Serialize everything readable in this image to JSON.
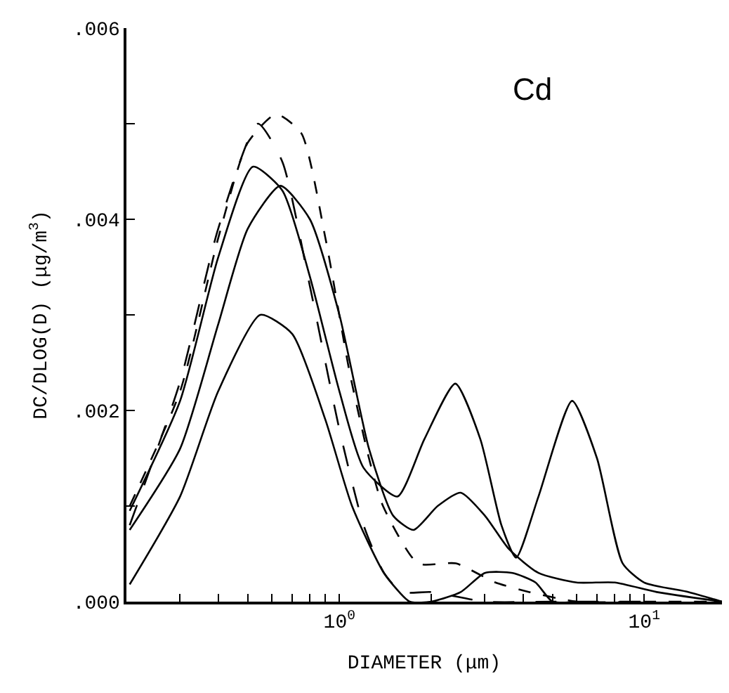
{
  "chart_data": {
    "type": "line",
    "xlabel": "DIAMETER (μm)",
    "ylabel": "DC/DLOG(D) (μg/m$^{3}$)",
    "annotations": [
      "Cd"
    ],
    "log": "x",
    "marker": "none",
    "xlim": [
      0.2,
      18
    ],
    "ylim": [
      0,
      0.006
    ],
    "xticks": [
      {
        "value": 0.3,
        "label": null
      },
      {
        "value": 0.4,
        "label": null
      },
      {
        "value": 0.5,
        "label": null
      },
      {
        "value": 0.6,
        "label": null
      },
      {
        "value": 0.7,
        "label": null
      },
      {
        "value": 0.8,
        "label": null
      },
      {
        "value": 0.9,
        "label": null
      },
      {
        "value": 1,
        "label": "10$^{0}$"
      },
      {
        "value": 2,
        "label": null
      },
      {
        "value": 3,
        "label": null
      },
      {
        "value": 4,
        "label": null
      },
      {
        "value": 5,
        "label": null
      },
      {
        "value": 6,
        "label": null
      },
      {
        "value": 7,
        "label": null
      },
      {
        "value": 8,
        "label": null
      },
      {
        "value": 9,
        "label": null
      },
      {
        "value": 10,
        "label": "10$^{1}$"
      }
    ],
    "yticks": [
      {
        "value": 0,
        "label": ".000"
      },
      {
        "value": 0.001,
        "label": null
      },
      {
        "value": 0.002,
        "label": ".002"
      },
      {
        "value": 0.003,
        "label": null
      },
      {
        "value": 0.004,
        "label": ".004"
      },
      {
        "value": 0.005,
        "label": null
      },
      {
        "value": 0.006,
        "label": ".006"
      }
    ],
    "series": [
      {
        "color": "#000000",
        "line_style": "dashed",
        "x": [
          0.205,
          0.3,
          0.4,
          0.5,
          0.62,
          0.75,
          0.9,
          1.08,
          1.25,
          1.39,
          1.81,
          2.41,
          3.25,
          4.2,
          6,
          10,
          18
        ],
        "values": [
          0.001,
          0.0022,
          0.0038,
          0.0048,
          0.0051,
          0.0049,
          0.0038,
          0.0024,
          0.0015,
          0.001,
          0.0004,
          0.0004,
          0.0002,
          0.0001,
          0,
          0,
          0
        ]
      },
      {
        "color": "#000000",
        "line_style": "longdash",
        "x": [
          0.205,
          0.3,
          0.4,
          0.54,
          0.65,
          0.8,
          1.0,
          1.2,
          1.4,
          1.6,
          2.0,
          3,
          5,
          10
        ],
        "values": [
          0.0008,
          0.0023,
          0.0039,
          0.005,
          0.0046,
          0.0033,
          0.0018,
          0.0008,
          0.0003,
          0.0001,
          0.0001,
          0,
          0,
          0
        ]
      },
      {
        "color": "#000000",
        "line_style": "solid",
        "x": [
          0.205,
          0.3,
          0.4,
          0.52,
          0.65,
          0.8,
          1.0,
          1.2,
          1.55,
          1.9,
          2.4,
          2.9,
          3.4,
          3.8,
          4.5,
          5.8,
          7,
          8.5,
          10,
          14,
          18
        ],
        "values": [
          0.00095,
          0.0021,
          0.0036,
          0.00455,
          0.0043,
          0.0034,
          0.0022,
          0.0014,
          0.0011,
          0.0017,
          0.00228,
          0.0017,
          0.0008,
          0.00046,
          0.0011,
          0.0021,
          0.0015,
          0.0004,
          0.0002,
          0.0001,
          0
        ]
      },
      {
        "color": "#000000",
        "line_style": "solid",
        "x": [
          0.205,
          0.3,
          0.4,
          0.5,
          0.64,
          0.8,
          1.0,
          1.25,
          1.5,
          1.75,
          2.1,
          2.5,
          3.0,
          3.6,
          4.5,
          6,
          8,
          11,
          18
        ],
        "values": [
          0.00075,
          0.0016,
          0.0029,
          0.0039,
          0.00435,
          0.004,
          0.003,
          0.0016,
          0.0009,
          0.00075,
          0.001,
          0.00114,
          0.0009,
          0.00055,
          0.0003,
          0.0002,
          0.0002,
          0.0001,
          0
        ]
      },
      {
        "color": "#000000",
        "line_style": "solid",
        "x": [
          0.205,
          0.3,
          0.4,
          0.55,
          0.7,
          0.9,
          1.1,
          1.4,
          1.7,
          2.0,
          2.5,
          3.0,
          3.7,
          4.4,
          5,
          6
        ],
        "values": [
          0.00018,
          0.0011,
          0.0022,
          0.003,
          0.0028,
          0.0019,
          0.001,
          0.0003,
          0,
          0,
          0.0001,
          0.0003,
          0.0003,
          0.0002,
          0,
          0
        ]
      }
    ]
  }
}
